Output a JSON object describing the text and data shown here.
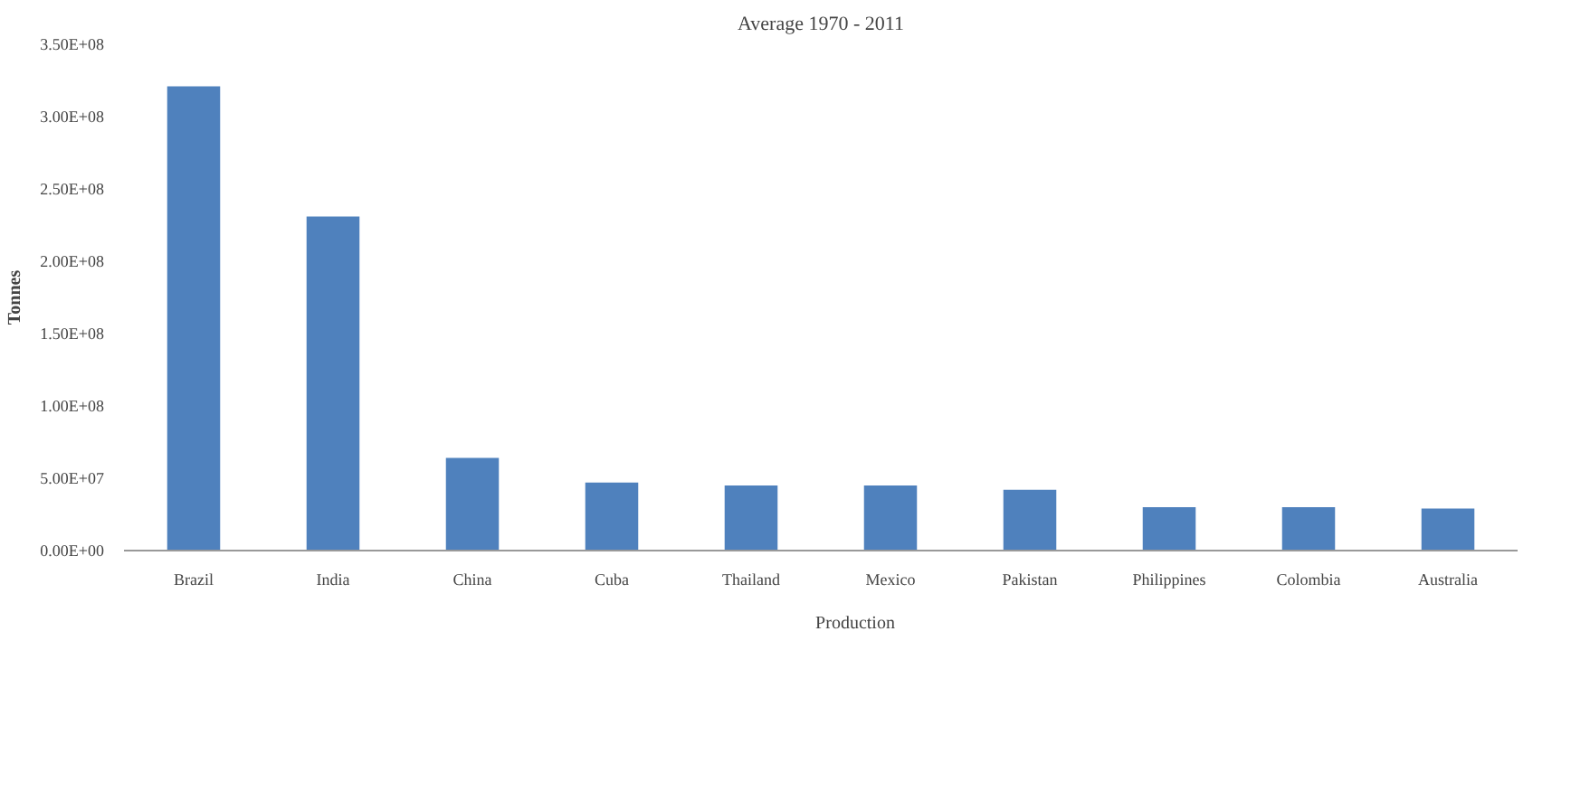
{
  "chart_data": {
    "type": "bar",
    "title": "Average 1970 - 2011",
    "ylabel": "Tonnes",
    "categories": [
      "Brazil",
      "India",
      "China",
      "Cuba",
      "Thailand",
      "Mexico",
      "Pakistan",
      "Philippines",
      "Colombia",
      "Australia"
    ],
    "series": [
      {
        "name": "Production",
        "color": "#4f81bd",
        "values": [
          321000000,
          231000000,
          64000000,
          47000000,
          45000000,
          45000000,
          42000000,
          30000000,
          30000000,
          29000000
        ]
      }
    ],
    "ylim": [
      0,
      350000000
    ],
    "yticks": [
      {
        "value": 0,
        "label": "0.00E+00"
      },
      {
        "value": 50000000,
        "label": "5.00E+07"
      },
      {
        "value": 100000000,
        "label": "1.00E+08"
      },
      {
        "value": 150000000,
        "label": "1.50E+08"
      },
      {
        "value": 200000000,
        "label": "2.00E+08"
      },
      {
        "value": 250000000,
        "label": "2.50E+08"
      },
      {
        "value": 300000000,
        "label": "3.00E+08"
      },
      {
        "value": 350000000,
        "label": "3.50E+08"
      }
    ],
    "grid": false,
    "legend": "bottom"
  }
}
